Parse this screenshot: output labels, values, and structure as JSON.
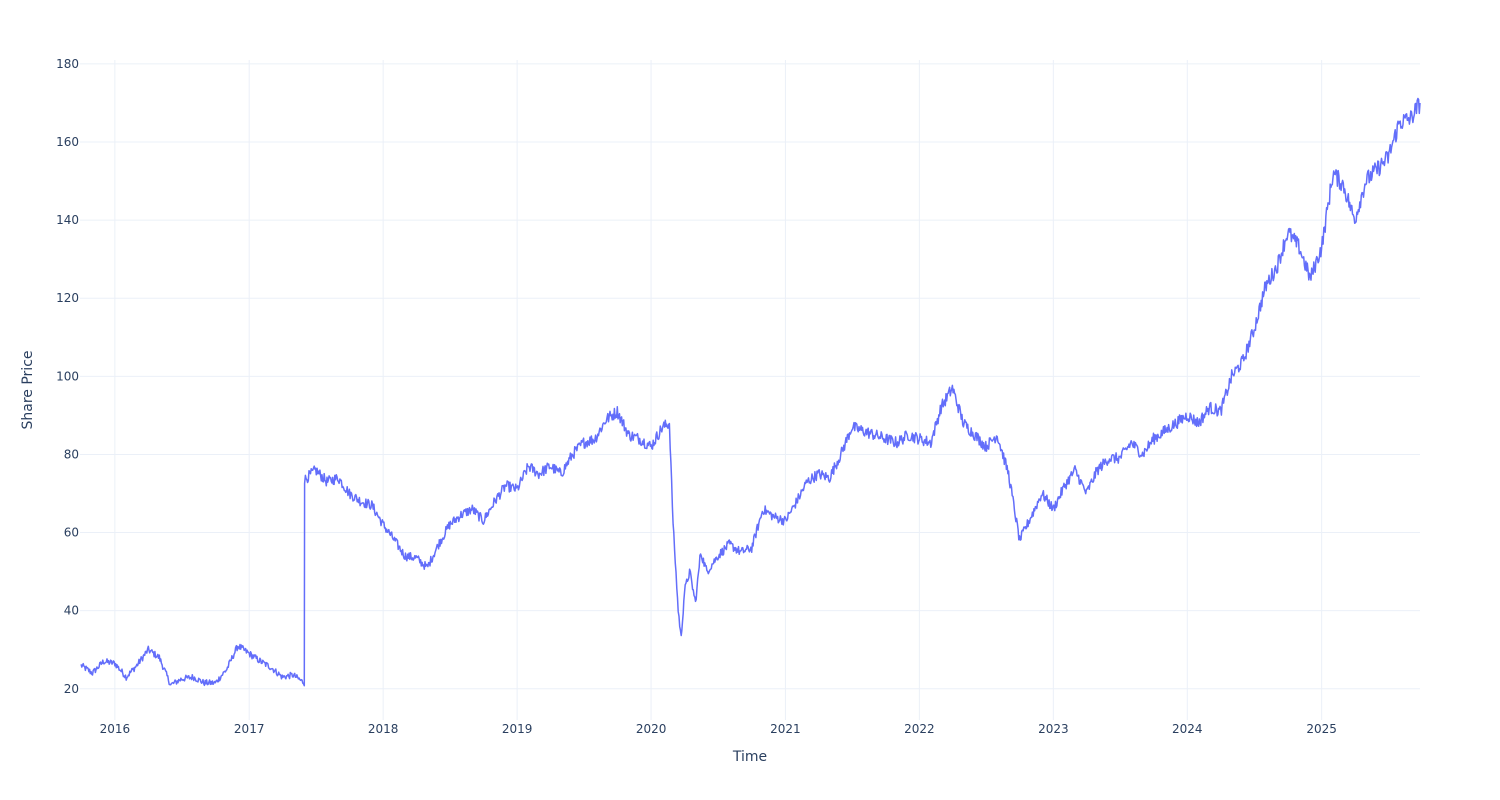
{
  "chart_data": {
    "type": "line",
    "title": "",
    "xlabel": "Time",
    "ylabel": "Share Price",
    "xlim": [
      "2015-09-28",
      "2025-09-26"
    ],
    "ylim": [
      12,
      181
    ],
    "x_ticks": [
      "2016",
      "2017",
      "2018",
      "2019",
      "2020",
      "2021",
      "2022",
      "2023",
      "2024",
      "2025"
    ],
    "y_ticks": [
      20,
      40,
      60,
      80,
      100,
      120,
      140,
      160,
      180
    ],
    "grid": true,
    "legend": "none",
    "colors": {
      "line": "#636efa",
      "grid": "#ebf0f8",
      "text": "#2a3f5f"
    },
    "series": [
      {
        "x": [
          "2015-10-01",
          "2015-11-01",
          "2015-12-01",
          "2016-01-01",
          "2016-02-01",
          "2016-03-01",
          "2016-04-01",
          "2016-05-01",
          "2016-06-01",
          "2016-07-01",
          "2016-08-01",
          "2016-09-01",
          "2016-10-01",
          "2016-11-01",
          "2016-12-01",
          "2017-01-01",
          "2017-02-01",
          "2017-03-01",
          "2017-04-01",
          "2017-05-01",
          "2017-05-31",
          "2017-06-01",
          "2017-07-01",
          "2017-08-01",
          "2017-09-01",
          "2017-10-01",
          "2017-11-01",
          "2017-12-01",
          "2018-01-01",
          "2018-02-01",
          "2018-03-01",
          "2018-04-01",
          "2018-05-01",
          "2018-06-01",
          "2018-07-01",
          "2018-08-01",
          "2018-09-01",
          "2018-10-01",
          "2018-11-01",
          "2018-12-01",
          "2019-01-01",
          "2019-02-01",
          "2019-03-01",
          "2019-04-01",
          "2019-05-01",
          "2019-06-01",
          "2019-07-01",
          "2019-08-01",
          "2019-09-01",
          "2019-10-01",
          "2019-11-01",
          "2019-12-01",
          "2020-01-01",
          "2020-02-01",
          "2020-02-20",
          "2020-03-01",
          "2020-03-15",
          "2020-03-23",
          "2020-04-01",
          "2020-04-15",
          "2020-05-01",
          "2020-05-15",
          "2020-06-01",
          "2020-07-01",
          "2020-08-01",
          "2020-09-01",
          "2020-10-01",
          "2020-11-01",
          "2020-12-01",
          "2021-01-01",
          "2021-02-01",
          "2021-03-01",
          "2021-04-01",
          "2021-05-01",
          "2021-06-01",
          "2021-07-01",
          "2021-08-01",
          "2021-09-01",
          "2021-10-01",
          "2021-11-01",
          "2021-12-01",
          "2022-01-01",
          "2022-02-01",
          "2022-03-01",
          "2022-04-01",
          "2022-05-01",
          "2022-06-01",
          "2022-07-01",
          "2022-08-01",
          "2022-09-01",
          "2022-10-01",
          "2022-11-01",
          "2022-12-01",
          "2023-01-01",
          "2023-02-01",
          "2023-03-01",
          "2023-04-01",
          "2023-05-01",
          "2023-06-01",
          "2023-07-01",
          "2023-08-01",
          "2023-09-01",
          "2023-10-01",
          "2023-11-01",
          "2023-12-01",
          "2024-01-01",
          "2024-02-01",
          "2024-03-01",
          "2024-04-01",
          "2024-05-01",
          "2024-06-01",
          "2024-07-01",
          "2024-08-01",
          "2024-09-01",
          "2024-10-01",
          "2024-11-01",
          "2024-12-01",
          "2025-01-01",
          "2025-02-01",
          "2025-03-01",
          "2025-04-01",
          "2025-05-01",
          "2025-06-01",
          "2025-07-01",
          "2025-08-01",
          "2025-09-01",
          "2025-09-26"
        ],
        "y": [
          26,
          24,
          27,
          26.5,
          23,
          26,
          30,
          28,
          21,
          22.5,
          23,
          21.5,
          21.5,
          25,
          31,
          29,
          27,
          25.5,
          23,
          23.5,
          21.5,
          73.5,
          76,
          73,
          74,
          70,
          68,
          67,
          62,
          58,
          54,
          53.5,
          51,
          57,
          62,
          64.5,
          66,
          63,
          68,
          72,
          71,
          77,
          75,
          77,
          75,
          80,
          83,
          84,
          89,
          91,
          85,
          84,
          82,
          87,
          88,
          62,
          40,
          33,
          45,
          50,
          42,
          55,
          50,
          54,
          57,
          55,
          56,
          66,
          64,
          63,
          68,
          73,
          75,
          74,
          80,
          87,
          86,
          85,
          84,
          83,
          85,
          84,
          83,
          92,
          97,
          88,
          85,
          82,
          85,
          75,
          58,
          64,
          70,
          66,
          72,
          76,
          70,
          76,
          79,
          79,
          83,
          80,
          84,
          86,
          88,
          90,
          88,
          92,
          91,
          100,
          104,
          112,
          123,
          128,
          137,
          133,
          125,
          133,
          152,
          149,
          140,
          150,
          153,
          156,
          165,
          166,
          170
        ],
        "noise": 0.9
      }
    ]
  }
}
